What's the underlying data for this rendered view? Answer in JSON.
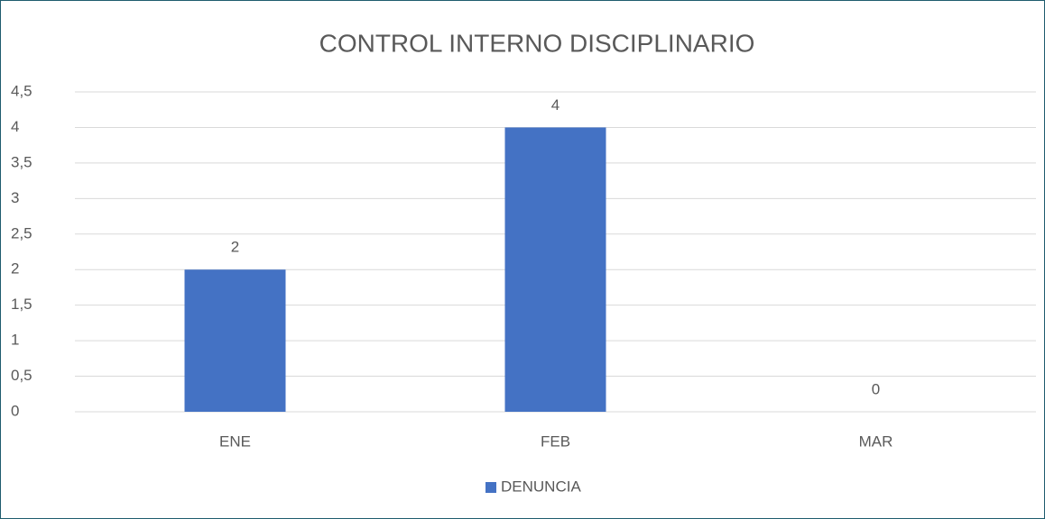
{
  "chart_data": {
    "type": "bar",
    "title": "CONTROL INTERNO DISCIPLINARIO",
    "categories": [
      "ENE",
      "FEB",
      "MAR"
    ],
    "series": [
      {
        "name": "DENUNCIA",
        "color": "#4472c4",
        "values": [
          2,
          4,
          0
        ]
      }
    ],
    "ylim": [
      0,
      4.5
    ],
    "yticks": [
      0,
      {
        "value": 0.5,
        "label": "0,5"
      },
      1,
      {
        "value": 1.5,
        "label": "1,5"
      },
      2,
      {
        "value": 2.5,
        "label": "2,5"
      },
      3,
      {
        "value": 3.5,
        "label": "3,5"
      },
      4,
      {
        "value": 4.5,
        "label": "4,5"
      }
    ],
    "grid": true,
    "legend": "bottom"
  }
}
